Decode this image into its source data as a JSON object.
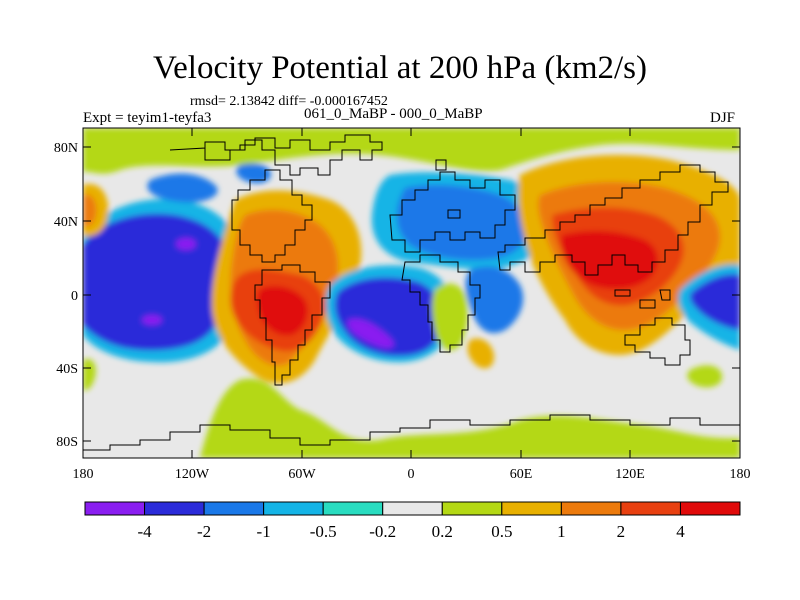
{
  "title": "Velocity Potential at 200 hPa (km2/s)",
  "rmsd_text": "rmsd= 2.13842 diff= -0.000167452",
  "expt_text": "Expt = teyim1-teyfa3",
  "period_text": "061_0_MaBP - 000_0_MaBP",
  "season_text": "DJF",
  "lat_labels": [
    "80N",
    "40N",
    "0",
    "40S",
    "80S"
  ],
  "lon_labels": [
    "180",
    "120W",
    "60W",
    "0",
    "60E",
    "120E",
    "180"
  ],
  "colorbar": {
    "colors": [
      "#8a1ef0",
      "#2b2bd9",
      "#1a78e8",
      "#14b4e6",
      "#29dcc0",
      "#e8e8e8",
      "#b4d814",
      "#e8b000",
      "#ec7a0c",
      "#e84010",
      "#e00a0a"
    ],
    "labels": [
      "-4",
      "-2",
      "-1",
      "-0.5",
      "-0.2",
      "0.2",
      "0.5",
      "1",
      "2",
      "4"
    ]
  }
}
